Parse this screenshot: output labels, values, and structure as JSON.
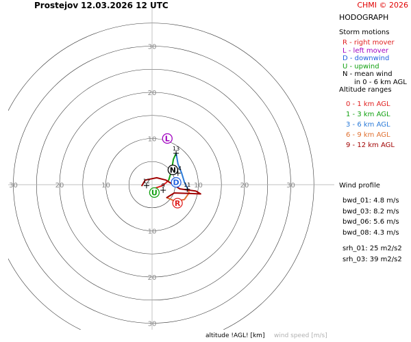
{
  "header": {
    "station": "Prostejov",
    "datetime": "12.03.2026 12 UTC",
    "copyright": "CHMI © 2026"
  },
  "sidebar": {
    "title": "HODOGRAPH",
    "storm_heading": "Storm motions",
    "storm_items": [
      {
        "text": "R - right mover",
        "color": "#e02020"
      },
      {
        "text": "L - left mover",
        "color": "#a000c0"
      },
      {
        "text": "D - downwind",
        "color": "#2060e0"
      },
      {
        "text": "U - upwind",
        "color": "#10a010"
      },
      {
        "text": "N - mean wind",
        "color": "#000000"
      }
    ],
    "storm_note": "in 0 - 6 km AGL",
    "altitude_heading": "Altitude ranges",
    "altitude_items": [
      {
        "text": "0 - 1 km AGL",
        "color": "#e02020"
      },
      {
        "text": "1 - 3 km AGL",
        "color": "#10a010"
      },
      {
        "text": "3 - 6 km AGL",
        "color": "#2a7ad8"
      },
      {
        "text": "6 - 9 km AGL",
        "color": "#e07030"
      },
      {
        "text": "9 - 12 km AGL",
        "color": "#a00000"
      }
    ],
    "profile_heading": "Wind profile",
    "bwd": [
      "bwd_01: 4.8 m/s",
      "bwd_03: 8.2 m/s",
      "bwd_06: 5.6 m/s",
      "bwd_08: 4.3 m/s"
    ],
    "srh": [
      "srh_01: 25 m2/s2",
      "srh_03: 39 m2/s2"
    ]
  },
  "footer": {
    "altitude_label": "altitude !AGL! [km]",
    "speed_label": "wind speed [m/s]"
  },
  "chart_data": {
    "type": "hodograph",
    "units": "m/s",
    "ring_values": [
      5,
      10,
      15,
      20,
      25,
      30,
      35
    ],
    "axis_labels": [
      10,
      20,
      30
    ],
    "hodograph_segments": [
      {
        "layer": "0 - 1 km AGL",
        "color": "#e02020",
        "points": [
          [
            0.5,
            -0.8
          ],
          [
            2.0,
            -0.3
          ],
          [
            3.0,
            0.4
          ],
          [
            3.6,
            1.0
          ]
        ]
      },
      {
        "layer": "1 - 3 km AGL",
        "color": "#10a010",
        "points": [
          [
            3.6,
            1.0
          ],
          [
            4.2,
            3.0
          ],
          [
            4.6,
            5.5
          ],
          [
            5.2,
            6.8
          ]
        ]
      },
      {
        "layer": "3 - 6 km AGL",
        "color": "#2a7ad8",
        "points": [
          [
            5.2,
            6.8
          ],
          [
            5.6,
            4.5
          ],
          [
            6.4,
            2.5
          ],
          [
            7.0,
            0.5
          ],
          [
            7.8,
            -1.0
          ]
        ]
      },
      {
        "layer": "6 - 9 km AGL",
        "color": "#e07030",
        "points": [
          [
            7.8,
            -1.0
          ],
          [
            8.0,
            -1.8
          ],
          [
            7.0,
            -3.2
          ],
          [
            5.0,
            -3.6
          ],
          [
            3.2,
            -2.8
          ]
        ]
      },
      {
        "layer": "9 - 12 km AGL",
        "color": "#a00000",
        "points": [
          [
            3.2,
            -2.8
          ],
          [
            4.8,
            -1.8
          ],
          [
            7.8,
            -1.9
          ],
          [
            10.5,
            -2.0
          ],
          [
            9.5,
            -1.4
          ],
          [
            6.0,
            -0.9
          ],
          [
            3.0,
            1.0
          ],
          [
            1.0,
            1.5
          ],
          [
            -1.5,
            1.0
          ],
          [
            -2.2,
            -0.2
          ]
        ]
      }
    ],
    "height_markers": [
      {
        "label": "13",
        "x": 5.2,
        "y": 6.8
      },
      {
        "label": "14",
        "x": 5.6,
        "y": 2.5
      },
      {
        "label": "12",
        "x": -1.2,
        "y": -0.2
      },
      {
        "label": "9",
        "x": 2.4,
        "y": -1.2
      },
      {
        "label": "11",
        "x": 7.6,
        "y": -1.0
      }
    ],
    "storm_motions": [
      {
        "letter": "L",
        "x": 3.3,
        "y": 10.0,
        "color": "#a000c0"
      },
      {
        "letter": "N",
        "x": 4.5,
        "y": 3.2,
        "color": "#000000"
      },
      {
        "letter": "D",
        "x": 5.2,
        "y": 0.5,
        "color": "#2060e0"
      },
      {
        "letter": "U",
        "x": 0.5,
        "y": -1.7,
        "color": "#10a010"
      },
      {
        "letter": "R",
        "x": 5.5,
        "y": -4.0,
        "color": "#e02020"
      }
    ]
  }
}
